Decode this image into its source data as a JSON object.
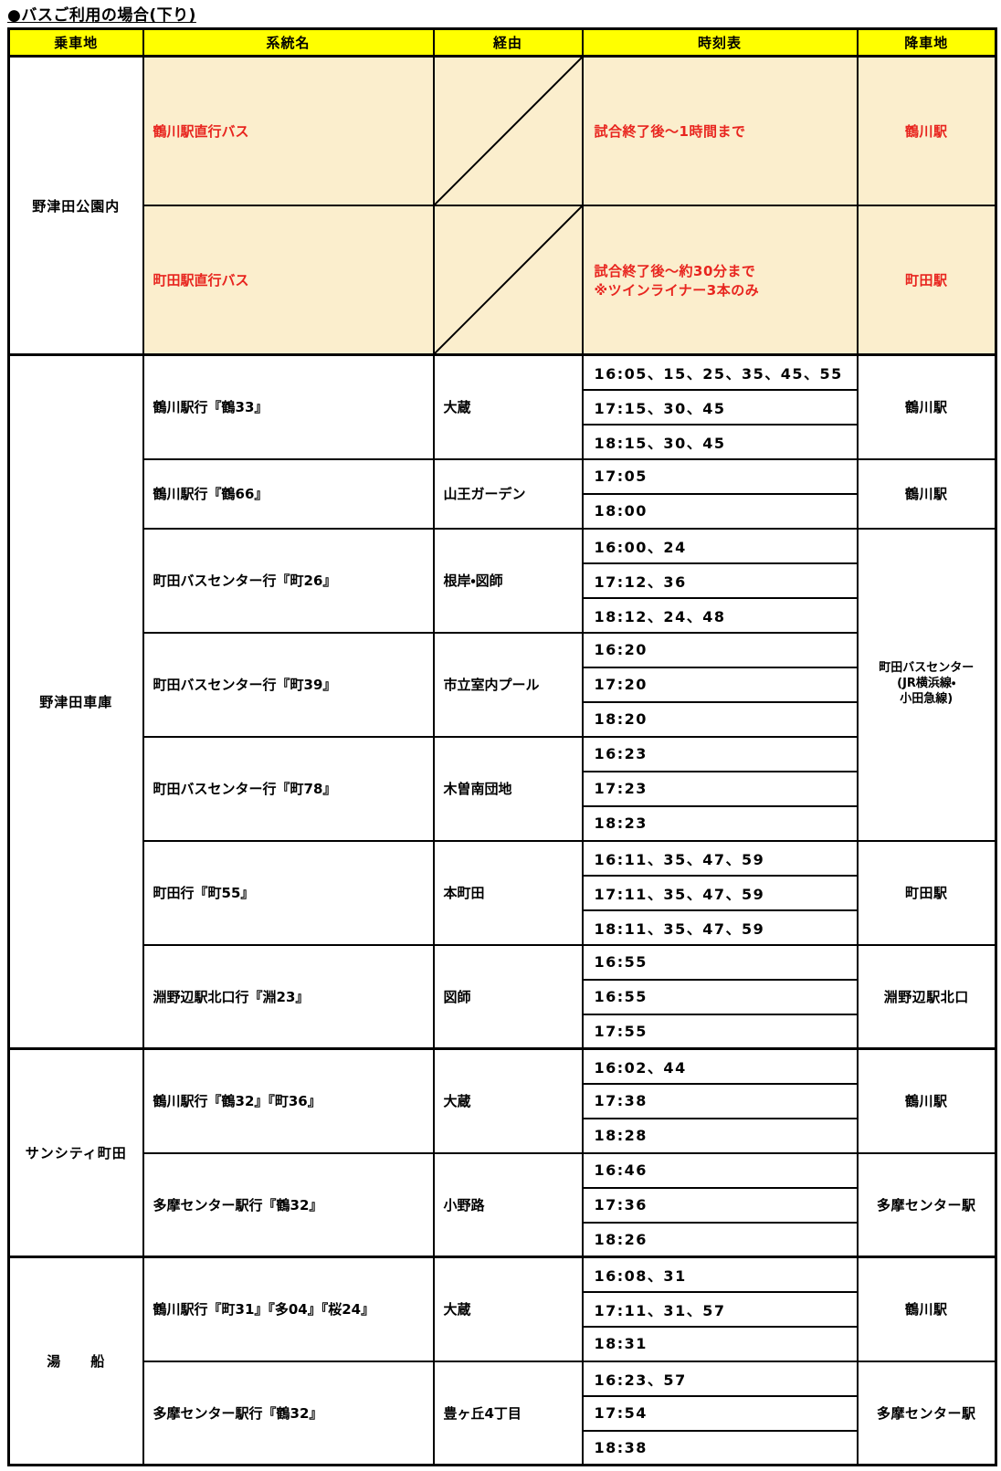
{
  "title": "●バスご利用の場合(下り)",
  "columns": [
    "乗車地",
    "系統名",
    "経由",
    "時刻表",
    "降車地"
  ],
  "colors": {
    "header_bg": "#ffff00",
    "highlight_bg": "#fbeecd",
    "highlight_text": "#e8251f",
    "border": "#000000"
  },
  "sections": [
    {
      "boarding": "野津田公園内",
      "highlight": true,
      "groups": [
        {
          "route": "鶴川駅直行バス",
          "via_diagonal": true,
          "times": [
            [
              "試合終了後～1時間まで"
            ]
          ]
        },
        {
          "route": "町田駅直行バス",
          "via_diagonal": true,
          "times": [
            [
              "試合終了後～約30分まで",
              "※ツインライナー3本のみ"
            ]
          ]
        }
      ],
      "dropoffs": [
        {
          "label": [
            "鶴川駅"
          ],
          "rows": 1
        },
        {
          "label": [
            "町田駅"
          ],
          "rows": 1
        }
      ]
    },
    {
      "boarding": "野津田車庫",
      "highlight": false,
      "groups": [
        {
          "route": "鶴川駅行『鶴33』",
          "via": "大蔵",
          "times": [
            [
              "16:05、15、25、35、45、55"
            ],
            [
              "17:15、30、45"
            ],
            [
              "18:15、30、45"
            ]
          ]
        },
        {
          "route": "鶴川駅行『鶴66』",
          "via": "山王ガーデン",
          "times": [
            [
              "17:05"
            ],
            [
              "18:00"
            ]
          ]
        },
        {
          "route": "町田バスセンター行『町26』",
          "via": "根岸・図師",
          "times": [
            [
              "16:00、24"
            ],
            [
              "17:12、36"
            ],
            [
              "18:12、24、48"
            ]
          ]
        },
        {
          "route": "町田バスセンター行『町39』",
          "via": "市立室内プール",
          "times": [
            [
              "16:20"
            ],
            [
              "17:20"
            ],
            [
              "18:20"
            ]
          ]
        },
        {
          "route": "町田バスセンター行『町78』",
          "via": "木曽南団地",
          "times": [
            [
              "16:23"
            ],
            [
              "17:23"
            ],
            [
              "18:23"
            ]
          ]
        },
        {
          "route": "町田行『町55』",
          "via": "本町田",
          "times": [
            [
              "16:11、35、47、59"
            ],
            [
              "17:11、35、47、59"
            ],
            [
              "18:11、35、47、59"
            ]
          ]
        },
        {
          "route": "淵野辺駅北口行『淵23』",
          "via": "図師",
          "times": [
            [
              "16:55"
            ],
            [
              "16:55"
            ],
            [
              "17:55"
            ]
          ]
        }
      ],
      "dropoffs": [
        {
          "label": [
            "鶴川駅"
          ],
          "rows": 3
        },
        {
          "label": [
            "鶴川駅"
          ],
          "rows": 2
        },
        {
          "label": [
            "町田バスセンター",
            "(JR横浜線・",
            "小田急線)"
          ],
          "rows": 9
        },
        {
          "label": [
            "町田駅"
          ],
          "rows": 3
        },
        {
          "label": [
            "淵野辺駅北口"
          ],
          "rows": 3
        }
      ]
    },
    {
      "boarding": "サンシティ町田",
      "highlight": false,
      "groups": [
        {
          "route": "鶴川駅行『鶴32』『町36』",
          "via": "大蔵",
          "times": [
            [
              "16:02、44"
            ],
            [
              "17:38"
            ],
            [
              "18:28"
            ]
          ]
        },
        {
          "route": "多摩センター駅行『鶴32』",
          "via": "小野路",
          "times": [
            [
              "16:46"
            ],
            [
              "17:36"
            ],
            [
              "18:26"
            ]
          ]
        }
      ],
      "dropoffs": [
        {
          "label": [
            "鶴川駅"
          ],
          "rows": 3
        },
        {
          "label": [
            "多摩センター駅"
          ],
          "rows": 3
        }
      ]
    },
    {
      "boarding": "湯　　船",
      "highlight": false,
      "groups": [
        {
          "route": "鶴川駅行『町31』『多04』『桜24』",
          "via": "大蔵",
          "times": [
            [
              "16:08、31"
            ],
            [
              "17:11、31、57"
            ],
            [
              "18:31"
            ]
          ]
        },
        {
          "route": "多摩センター駅行『鶴32』",
          "via": "豊ヶ丘4丁目",
          "times": [
            [
              "16:23、57"
            ],
            [
              "17:54"
            ],
            [
              "18:38"
            ]
          ]
        }
      ],
      "dropoffs": [
        {
          "label": [
            "鶴川駅"
          ],
          "rows": 3
        },
        {
          "label": [
            "多摩センター駅"
          ],
          "rows": 3
        }
      ]
    }
  ]
}
